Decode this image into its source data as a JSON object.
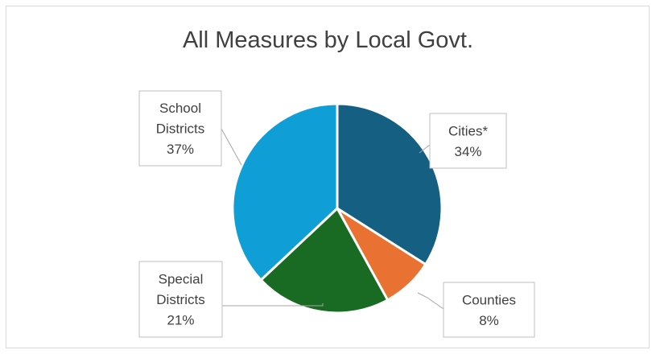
{
  "chart_data": {
    "type": "pie",
    "title": "All Measures by Local Govt.",
    "categories": [
      "Cities*",
      "Counties",
      "Special Districts",
      "School Districts"
    ],
    "values": [
      34,
      8,
      21,
      37
    ],
    "value_labels": [
      "34%",
      "8%",
      "21%",
      "37%"
    ],
    "label_lines": [
      [
        "Cities*",
        "34%"
      ],
      [
        "Counties",
        "8%"
      ],
      [
        "Special",
        "Districts",
        "21%"
      ],
      [
        "School",
        "Districts",
        "37%"
      ]
    ],
    "colors": [
      "#156082",
      "#E97132",
      "#196B24",
      "#0F9ED5"
    ],
    "legend": "none"
  }
}
